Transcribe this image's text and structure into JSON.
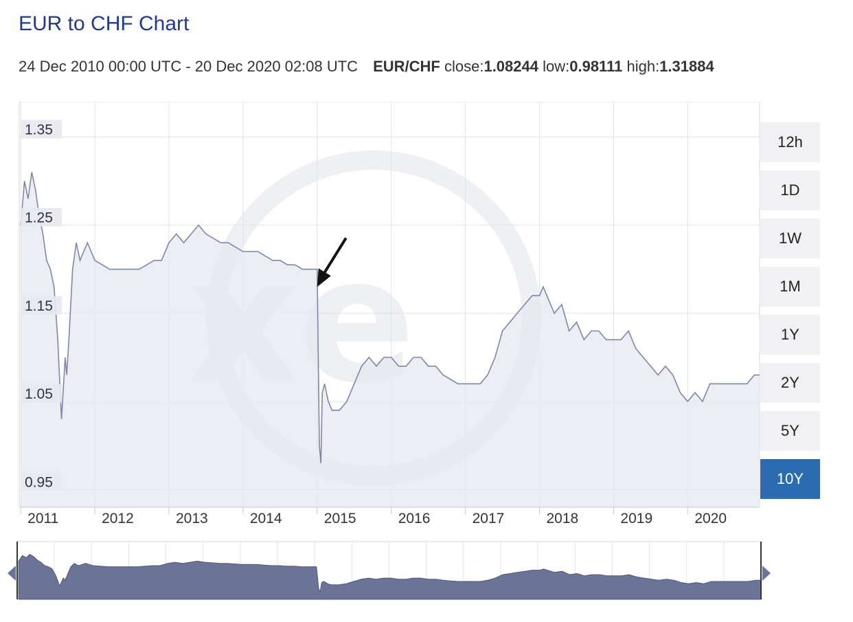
{
  "header": {
    "title": "EUR to CHF Chart",
    "date_range": "24 Dec 2010 00:00 UTC - 20 Dec 2020 02:08 UTC",
    "pair": "EUR/CHF",
    "close_label": "close:",
    "close_value": "1.08244",
    "low_label": "low:",
    "low_value": "0.98111",
    "high_label": "high:",
    "high_value": "1.31884"
  },
  "range_buttons": [
    {
      "label": "12h",
      "active": false
    },
    {
      "label": "1D",
      "active": false
    },
    {
      "label": "1W",
      "active": false
    },
    {
      "label": "1M",
      "active": false
    },
    {
      "label": "1Y",
      "active": false
    },
    {
      "label": "2Y",
      "active": false
    },
    {
      "label": "5Y",
      "active": false
    },
    {
      "label": "10Y",
      "active": true
    }
  ],
  "colors": {
    "line": "#7f86a8",
    "area": "#e6e8ef",
    "navigator_fill": "#6b7399",
    "active_button": "#2b6cb0"
  },
  "chart_data": {
    "type": "area",
    "x_unit": "year",
    "ylim": [
      0.93,
      1.39
    ],
    "xlim": [
      2010.98,
      2020.97
    ],
    "yticks": [
      "1.35",
      "1.25",
      "1.15",
      "1.05",
      "0.95"
    ],
    "xticks": [
      "2011",
      "2012",
      "2013",
      "2014",
      "2015",
      "2016",
      "2017",
      "2018",
      "2019",
      "2020"
    ],
    "grid": true,
    "series": [
      {
        "x": [
          2011.0,
          2011.05,
          2011.1,
          2011.15,
          2011.2,
          2011.25,
          2011.3,
          2011.35,
          2011.4,
          2011.45,
          2011.5,
          2011.55,
          2011.6,
          2011.62,
          2011.65,
          2011.7,
          2011.75,
          2011.8,
          2011.85,
          2011.9,
          2011.95,
          2012.0,
          2012.1,
          2012.2,
          2012.3,
          2012.4,
          2012.5,
          2012.6,
          2012.7,
          2012.8,
          2012.9,
          2013.0,
          2013.1,
          2013.2,
          2013.3,
          2013.4,
          2013.5,
          2013.6,
          2013.7,
          2013.8,
          2013.9,
          2014.0,
          2014.1,
          2014.2,
          2014.3,
          2014.4,
          2014.5,
          2014.6,
          2014.7,
          2014.8,
          2014.9,
          2015.0,
          2015.03,
          2015.05,
          2015.07,
          2015.1,
          2015.15,
          2015.2,
          2015.3,
          2015.4,
          2015.5,
          2015.6,
          2015.7,
          2015.8,
          2015.9,
          2016.0,
          2016.1,
          2016.2,
          2016.3,
          2016.4,
          2016.5,
          2016.6,
          2016.7,
          2016.8,
          2016.9,
          2017.0,
          2017.1,
          2017.2,
          2017.3,
          2017.4,
          2017.5,
          2017.6,
          2017.7,
          2017.8,
          2017.9,
          2018.0,
          2018.05,
          2018.1,
          2018.2,
          2018.3,
          2018.4,
          2018.5,
          2018.6,
          2018.7,
          2018.8,
          2018.9,
          2019.0,
          2019.1,
          2019.2,
          2019.3,
          2019.4,
          2019.5,
          2019.6,
          2019.7,
          2019.8,
          2019.9,
          2020.0,
          2020.1,
          2020.2,
          2020.3,
          2020.4,
          2020.5,
          2020.6,
          2020.7,
          2020.8,
          2020.9,
          2020.97
        ],
        "y": [
          1.25,
          1.3,
          1.28,
          1.31,
          1.29,
          1.26,
          1.24,
          1.21,
          1.2,
          1.18,
          1.12,
          1.03,
          1.1,
          1.08,
          1.12,
          1.2,
          1.23,
          1.21,
          1.22,
          1.23,
          1.22,
          1.21,
          1.205,
          1.2,
          1.2,
          1.2,
          1.2,
          1.2,
          1.205,
          1.21,
          1.21,
          1.23,
          1.24,
          1.23,
          1.24,
          1.25,
          1.24,
          1.235,
          1.23,
          1.23,
          1.225,
          1.22,
          1.22,
          1.22,
          1.215,
          1.21,
          1.21,
          1.205,
          1.205,
          1.2,
          1.2,
          1.2,
          1.0,
          0.98,
          1.06,
          1.07,
          1.05,
          1.04,
          1.04,
          1.05,
          1.07,
          1.09,
          1.1,
          1.09,
          1.1,
          1.1,
          1.09,
          1.09,
          1.1,
          1.1,
          1.09,
          1.09,
          1.08,
          1.075,
          1.07,
          1.07,
          1.07,
          1.07,
          1.08,
          1.1,
          1.13,
          1.14,
          1.15,
          1.16,
          1.17,
          1.17,
          1.18,
          1.17,
          1.15,
          1.16,
          1.13,
          1.14,
          1.12,
          1.13,
          1.13,
          1.12,
          1.12,
          1.12,
          1.13,
          1.11,
          1.1,
          1.09,
          1.08,
          1.09,
          1.08,
          1.06,
          1.05,
          1.06,
          1.05,
          1.07,
          1.07,
          1.07,
          1.07,
          1.07,
          1.07,
          1.08,
          1.08
        ]
      }
    ]
  }
}
